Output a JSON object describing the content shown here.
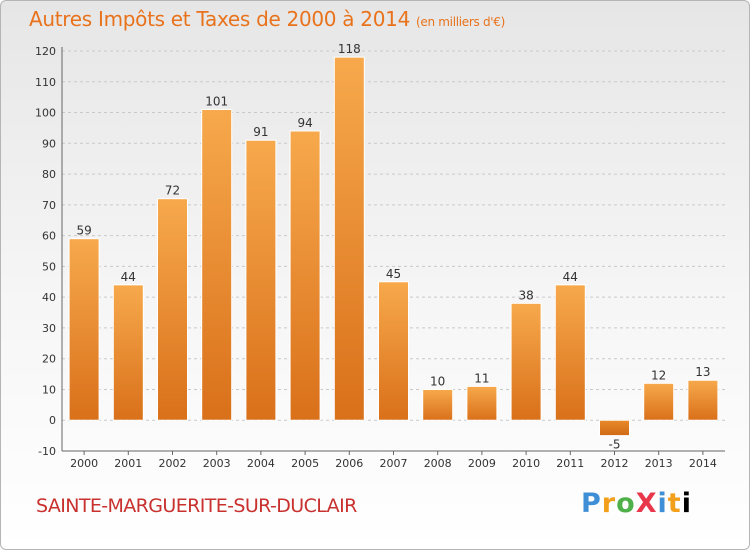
{
  "title": "Autres Impôts et Taxes de 2000 à 2014",
  "subtitle": "(en milliers d'€)",
  "commune": "SAINTE-MARGUERITE-SUR-DUCLAIR",
  "logo": "ProXiti",
  "colors": {
    "bar": "#f0922c",
    "title": "#e8731c",
    "commune": "#c8312e"
  },
  "chart_data": {
    "type": "bar",
    "title": "Autres Impôts et Taxes de 2000 à 2014",
    "subtitle": "(en milliers d'€)",
    "xlabel": "",
    "ylabel": "",
    "categories": [
      "2000",
      "2001",
      "2002",
      "2003",
      "2004",
      "2005",
      "2006",
      "2007",
      "2008",
      "2009",
      "2010",
      "2011",
      "2012",
      "2013",
      "2014"
    ],
    "values": [
      59,
      44,
      72,
      101,
      91,
      94,
      118,
      45,
      10,
      11,
      38,
      44,
      -5,
      12,
      13
    ],
    "ylim": [
      -10,
      120
    ],
    "yticks": [
      -10,
      0,
      10,
      20,
      30,
      40,
      50,
      60,
      70,
      80,
      90,
      100,
      110,
      120
    ],
    "grid": "horizontal dashed",
    "legend": "none"
  }
}
